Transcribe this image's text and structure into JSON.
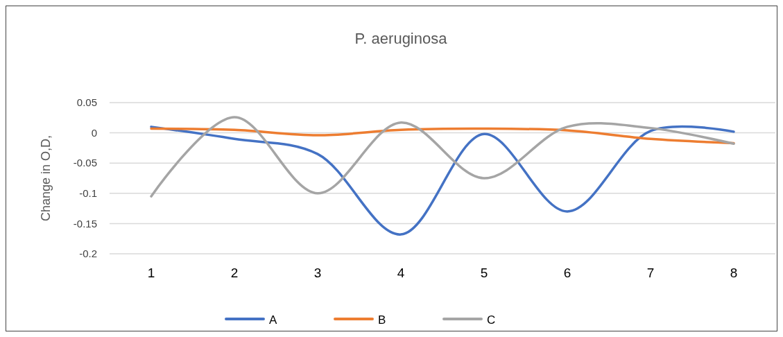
{
  "chart_data": {
    "type": "line",
    "title": "P. aeruginosa",
    "ylabel": "Change in O,D,",
    "categories": [
      "1",
      "2",
      "3",
      "4",
      "5",
      "6",
      "7",
      "8"
    ],
    "series": [
      {
        "name": "A",
        "color": "#4472c4",
        "values": [
          0.01,
          -0.01,
          -0.035,
          -0.168,
          -0.002,
          -0.13,
          0.003,
          0.002
        ]
      },
      {
        "name": "B",
        "color": "#ed7d31",
        "values": [
          0.007,
          0.005,
          -0.004,
          0.005,
          0.007,
          0.004,
          -0.01,
          -0.017
        ]
      },
      {
        "name": "C",
        "color": "#a5a5a5",
        "values": [
          -0.105,
          0.026,
          -0.1,
          0.017,
          -0.075,
          0.01,
          0.008,
          -0.018
        ]
      }
    ],
    "ylim": [
      -0.2,
      0.05
    ],
    "yticks": [
      0.05,
      0,
      -0.05,
      -0.1,
      -0.15,
      -0.2
    ],
    "grid": "y",
    "legend": "bottom",
    "marker": "none",
    "line_style": "solid"
  }
}
